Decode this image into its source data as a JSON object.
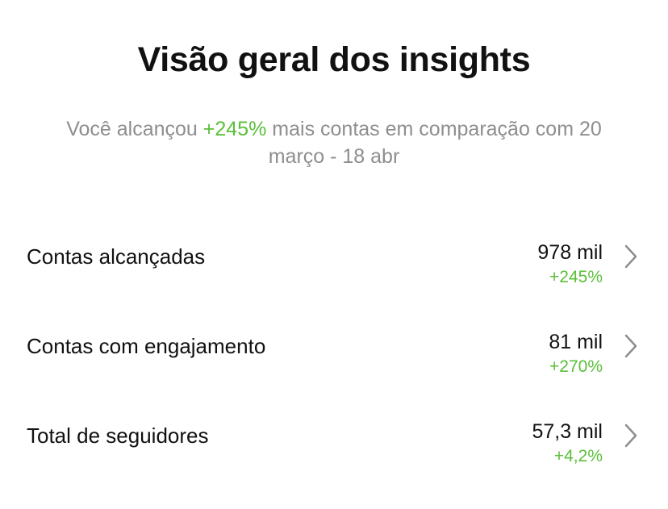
{
  "header": {
    "title": "Visão geral dos insights"
  },
  "summary": {
    "prefix": "Você alcançou",
    "highlight": "+245%",
    "suffix": "mais contas em comparação com 20 março - 18 abr"
  },
  "rows": [
    {
      "label": "Contas alcançadas",
      "value": "978 mil",
      "change": "+245%"
    },
    {
      "label": "Contas com engajamento",
      "value": "81 mil",
      "change": "+270%"
    },
    {
      "label": "Total de seguidores",
      "value": "57,3 mil",
      "change": "+4,2%"
    }
  ]
}
